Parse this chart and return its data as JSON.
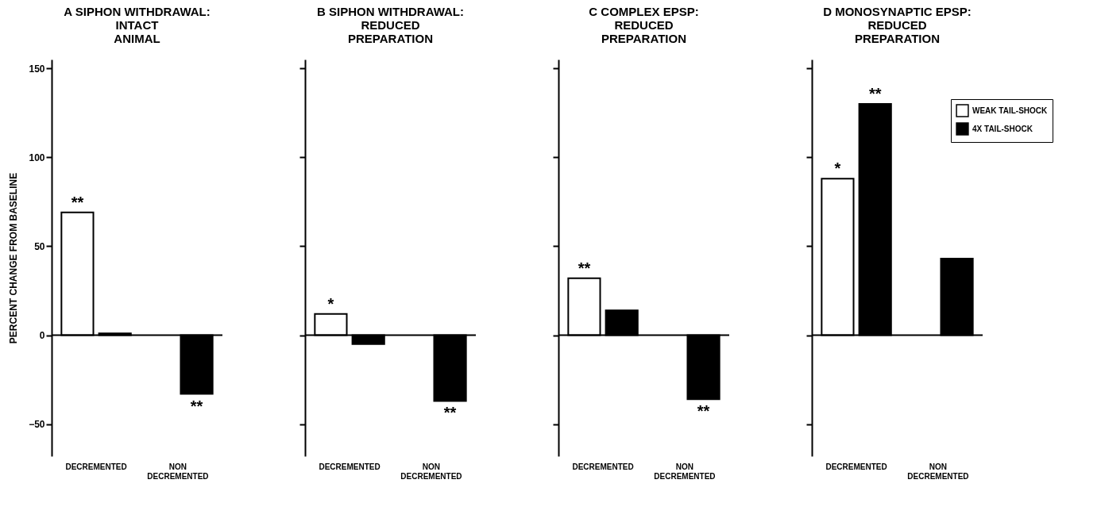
{
  "chart_data": [
    {
      "type": "bar",
      "title": "A  SIPHON WITHDRAWAL:\nINTACT\nANIMAL",
      "ylabel": "PERCENT CHANGE FROM BASELINE",
      "categories": [
        "DECREMENTED",
        "NON DECREMENTED"
      ],
      "series": [
        {
          "color": "#ffffff",
          "values": [
            69,
            null
          ]
        },
        {
          "color": "#000000",
          "values": [
            1,
            -33
          ]
        }
      ],
      "ylim": [
        -68,
        155
      ],
      "yticks": [
        -50,
        0,
        50,
        100,
        150
      ],
      "annotations": [
        {
          "text": "**",
          "x": "DECREMENTED",
          "y": 69
        },
        {
          "text": "**",
          "x": "NON DECREMENTED",
          "y": -33
        }
      ]
    },
    {
      "type": "bar",
      "title": "B  SIPHON WITHDRAWAL:\nREDUCED\nPREPARATION",
      "categories": [
        "DECREMENTED",
        "NON DECREMENTED"
      ],
      "series": [
        {
          "color": "#ffffff",
          "values": [
            12,
            null
          ]
        },
        {
          "color": "#000000",
          "values": [
            -5,
            -37
          ]
        }
      ],
      "ylim": [
        -68,
        155
      ],
      "yticks": [
        -50,
        0,
        50,
        100,
        150
      ],
      "tick_labels": "x",
      "annotations": [
        {
          "text": "*",
          "x": "DECREMENTED",
          "y": 12
        },
        {
          "text": "**",
          "x": "NON DECREMENTED",
          "y": -37
        }
      ]
    },
    {
      "type": "bar",
      "title": "C  COMPLEX EPSP:\nREDUCED\nPREPARATION",
      "categories": [
        "DECREMENTED",
        "NON DECREMENTED"
      ],
      "series": [
        {
          "color": "#ffffff",
          "values": [
            32,
            null
          ]
        },
        {
          "color": "#000000",
          "values": [
            14,
            -36
          ]
        }
      ],
      "ylim": [
        -68,
        155
      ],
      "yticks": [
        -50,
        0,
        50,
        100,
        150
      ],
      "tick_labels": "x",
      "annotations": [
        {
          "text": "**",
          "x": "DECREMENTED",
          "y": 32
        },
        {
          "text": "**",
          "x": "NON DECREMENTED",
          "y": -36
        }
      ]
    },
    {
      "type": "bar",
      "title": "D  MONOSYNAPTIC EPSP:\nREDUCED\nPREPARATION",
      "categories": [
        "DECREMENTED",
        "NON DECREMENTED"
      ],
      "series": [
        {
          "name": "WEAK TAIL-SHOCK",
          "color": "#ffffff",
          "values": [
            88,
            null
          ]
        },
        {
          "name": "4X TAIL-SHOCK",
          "color": "#000000",
          "values": [
            130,
            43
          ]
        }
      ],
      "ylim": [
        -68,
        155
      ],
      "yticks": [
        -50,
        0,
        50,
        100,
        150
      ],
      "tick_labels": "x",
      "legend": "top right",
      "annotations": [
        {
          "text": "*",
          "x": "DECREMENTED",
          "y": 88
        },
        {
          "text": "**",
          "x": "DECREMENTED",
          "y": 130
        }
      ]
    }
  ]
}
